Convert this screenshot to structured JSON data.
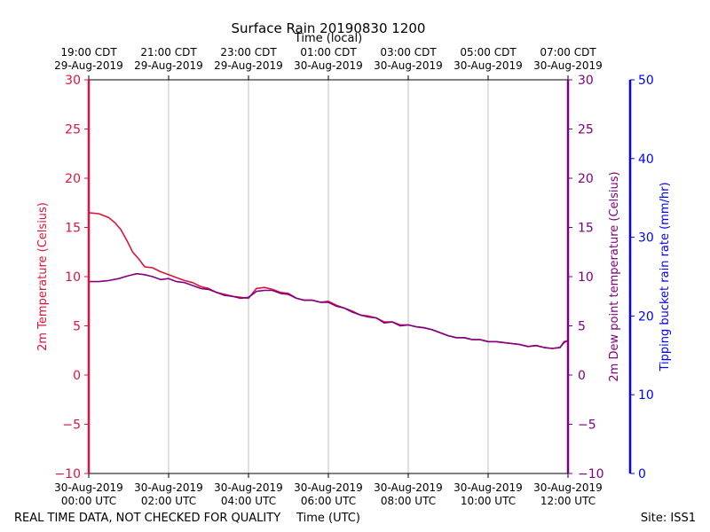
{
  "chart_data": {
    "type": "line",
    "title": "Surface Rain 20190830 1200",
    "top_axis_label": "Time (local)",
    "xlabel": "Time (UTC)",
    "left_ylabel": "2m Temperature (Celsius)",
    "right_ylabel": "2m Dew point temperature (Celsius)",
    "far_right_ylabel": "Tipping bucket rain rate (mm/hr)",
    "footer_left": "REAL TIME DATA, NOT CHECKED FOR QUALITY",
    "footer_right": "Site: ISS1",
    "x_range_hours_utc": [
      0,
      12
    ],
    "ylim": [
      -10,
      30
    ],
    "rain_ylim": [
      0,
      50
    ],
    "grid": "vertical",
    "colors": {
      "temperature": "#dc143c",
      "dewpoint": "#800080",
      "rain": "#0000ff"
    },
    "bottom_ticks": [
      {
        "x": 0,
        "line1": "30-Aug-2019",
        "line2": "00:00 UTC"
      },
      {
        "x": 2,
        "line1": "30-Aug-2019",
        "line2": "02:00 UTC"
      },
      {
        "x": 4,
        "line1": "30-Aug-2019",
        "line2": "04:00 UTC"
      },
      {
        "x": 6,
        "line1": "30-Aug-2019",
        "line2": "06:00 UTC"
      },
      {
        "x": 8,
        "line1": "30-Aug-2019",
        "line2": "08:00 UTC"
      },
      {
        "x": 10,
        "line1": "30-Aug-2019",
        "line2": "10:00 UTC"
      },
      {
        "x": 12,
        "line1": "30-Aug-2019",
        "line2": "12:00 UTC"
      }
    ],
    "top_ticks": [
      {
        "x": 0,
        "line1": "19:00 CDT",
        "line2": "29-Aug-2019"
      },
      {
        "x": 2,
        "line1": "21:00 CDT",
        "line2": "29-Aug-2019"
      },
      {
        "x": 4,
        "line1": "23:00 CDT",
        "line2": "29-Aug-2019"
      },
      {
        "x": 6,
        "line1": "01:00 CDT",
        "line2": "30-Aug-2019"
      },
      {
        "x": 8,
        "line1": "03:00 CDT",
        "line2": "30-Aug-2019"
      },
      {
        "x": 10,
        "line1": "05:00 CDT",
        "line2": "30-Aug-2019"
      },
      {
        "x": 12,
        "line1": "07:00 CDT",
        "line2": "30-Aug-2019"
      }
    ],
    "y_ticks": [
      -10,
      -5,
      0,
      5,
      10,
      15,
      20,
      25,
      30
    ],
    "y_tick_labels": [
      "−10",
      "−5",
      "0",
      "5",
      "10",
      "15",
      "20",
      "25",
      "30"
    ],
    "rain_ticks": [
      0,
      10,
      20,
      30,
      40,
      50
    ],
    "series": [
      {
        "key": "temperature",
        "x": [
          0,
          0.25,
          0.5,
          0.65,
          0.8,
          0.95,
          1.1,
          1.25,
          1.4,
          1.6,
          1.8,
          2.0,
          2.2,
          2.4,
          2.6,
          2.8,
          3.0,
          3.2,
          3.4,
          3.6,
          3.8,
          4.0,
          4.2,
          4.4,
          4.6,
          4.8,
          5.0,
          5.2,
          5.4,
          5.6,
          5.8,
          6.0,
          6.2,
          6.4,
          6.6,
          6.8,
          7.0,
          7.2,
          7.4,
          7.6,
          7.8,
          8.0,
          8.2,
          8.4,
          8.6,
          8.8,
          9.0,
          9.2,
          9.4,
          9.6,
          9.8,
          10.0,
          10.2,
          10.4,
          10.6,
          10.8,
          11.0,
          11.2,
          11.4,
          11.6,
          11.8,
          11.9,
          12.0
        ],
        "y": [
          16.5,
          16.4,
          16.0,
          15.5,
          14.8,
          13.7,
          12.5,
          11.8,
          11.0,
          10.9,
          10.5,
          10.2,
          9.9,
          9.6,
          9.4,
          9.0,
          8.8,
          8.4,
          8.2,
          8.0,
          7.9,
          7.8,
          8.8,
          8.9,
          8.7,
          8.4,
          8.3,
          7.8,
          7.6,
          7.6,
          7.4,
          7.5,
          7.1,
          6.8,
          6.5,
          6.1,
          6.0,
          5.8,
          5.4,
          5.4,
          5.1,
          5.1,
          4.9,
          4.8,
          4.6,
          4.3,
          4.0,
          3.8,
          3.8,
          3.6,
          3.6,
          3.4,
          3.4,
          3.3,
          3.2,
          3.1,
          2.9,
          3.0,
          2.8,
          2.7,
          2.8,
          3.4,
          3.5
        ]
      },
      {
        "key": "dewpoint",
        "x": [
          0,
          0.25,
          0.5,
          0.75,
          1.0,
          1.2,
          1.4,
          1.6,
          1.8,
          2.0,
          2.2,
          2.4,
          2.6,
          2.8,
          3.0,
          3.2,
          3.4,
          3.6,
          3.8,
          4.0,
          4.2,
          4.4,
          4.6,
          4.8,
          5.0,
          5.2,
          5.4,
          5.6,
          5.8,
          6.0,
          6.2,
          6.4,
          6.6,
          6.8,
          7.0,
          7.2,
          7.4,
          7.6,
          7.8,
          8.0,
          8.2,
          8.4,
          8.6,
          8.8,
          9.0,
          9.2,
          9.4,
          9.6,
          9.8,
          10.0,
          10.2,
          10.4,
          10.6,
          10.8,
          11.0,
          11.2,
          11.4,
          11.6,
          11.8,
          11.9,
          12.0
        ],
        "y": [
          9.5,
          9.5,
          9.6,
          9.8,
          10.1,
          10.3,
          10.2,
          10.0,
          9.7,
          9.8,
          9.5,
          9.4,
          9.1,
          8.8,
          8.7,
          8.4,
          8.1,
          8.0,
          7.8,
          7.9,
          8.5,
          8.6,
          8.6,
          8.3,
          8.2,
          7.8,
          7.6,
          7.6,
          7.4,
          7.4,
          7.0,
          6.8,
          6.4,
          6.1,
          5.9,
          5.8,
          5.3,
          5.4,
          5.0,
          5.1,
          4.9,
          4.8,
          4.6,
          4.3,
          4.0,
          3.8,
          3.8,
          3.6,
          3.6,
          3.4,
          3.4,
          3.3,
          3.2,
          3.1,
          2.9,
          3.0,
          2.8,
          2.7,
          2.8,
          3.3,
          3.5
        ]
      }
    ]
  }
}
